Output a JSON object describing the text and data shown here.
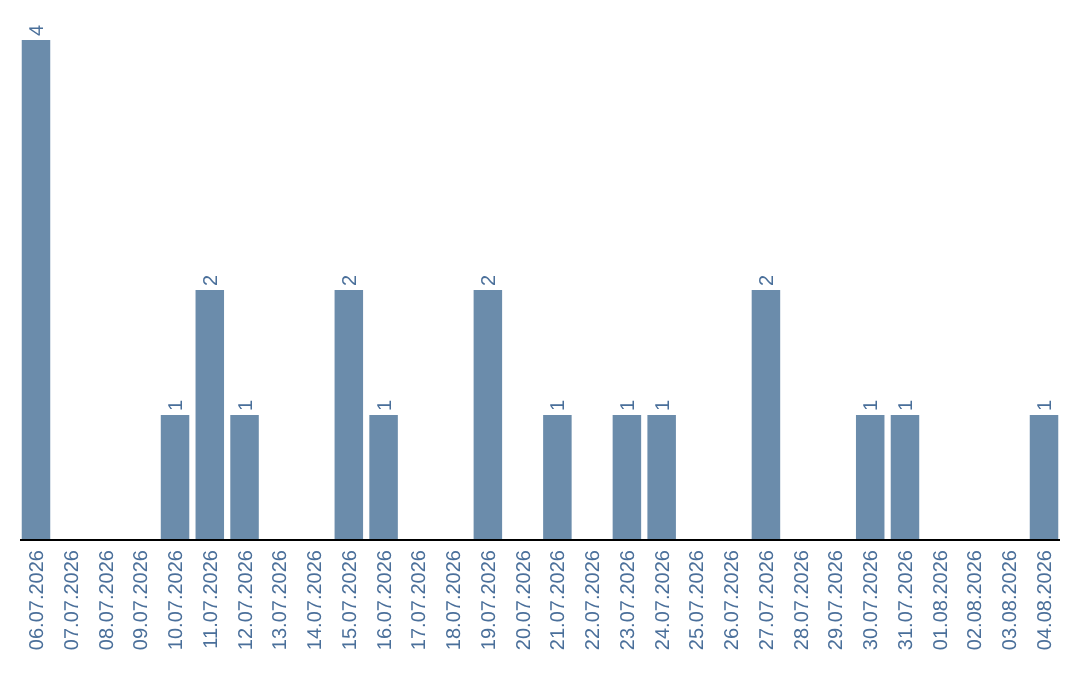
{
  "chart_data": {
    "type": "bar",
    "categories": [
      "06.07.2026",
      "07.07.2026",
      "08.07.2026",
      "09.07.2026",
      "10.07.2026",
      "11.07.2026",
      "12.07.2026",
      "13.07.2026",
      "14.07.2026",
      "15.07.2026",
      "16.07.2026",
      "17.07.2026",
      "18.07.2026",
      "19.07.2026",
      "20.07.2026",
      "21.07.2026",
      "22.07.2026",
      "23.07.2026",
      "24.07.2026",
      "25.07.2026",
      "26.07.2026",
      "27.07.2026",
      "28.07.2026",
      "29.07.2026",
      "30.07.2026",
      "31.07.2026",
      "01.08.2026",
      "02.08.2026",
      "03.08.2026",
      "04.08.2026"
    ],
    "values": [
      4,
      null,
      null,
      null,
      1,
      2,
      1,
      null,
      null,
      2,
      1,
      null,
      null,
      2,
      null,
      1,
      null,
      1,
      1,
      null,
      null,
      2,
      null,
      null,
      1,
      1,
      null,
      null,
      null,
      1
    ],
    "color": "#6b8cab",
    "data_labels": true
  }
}
